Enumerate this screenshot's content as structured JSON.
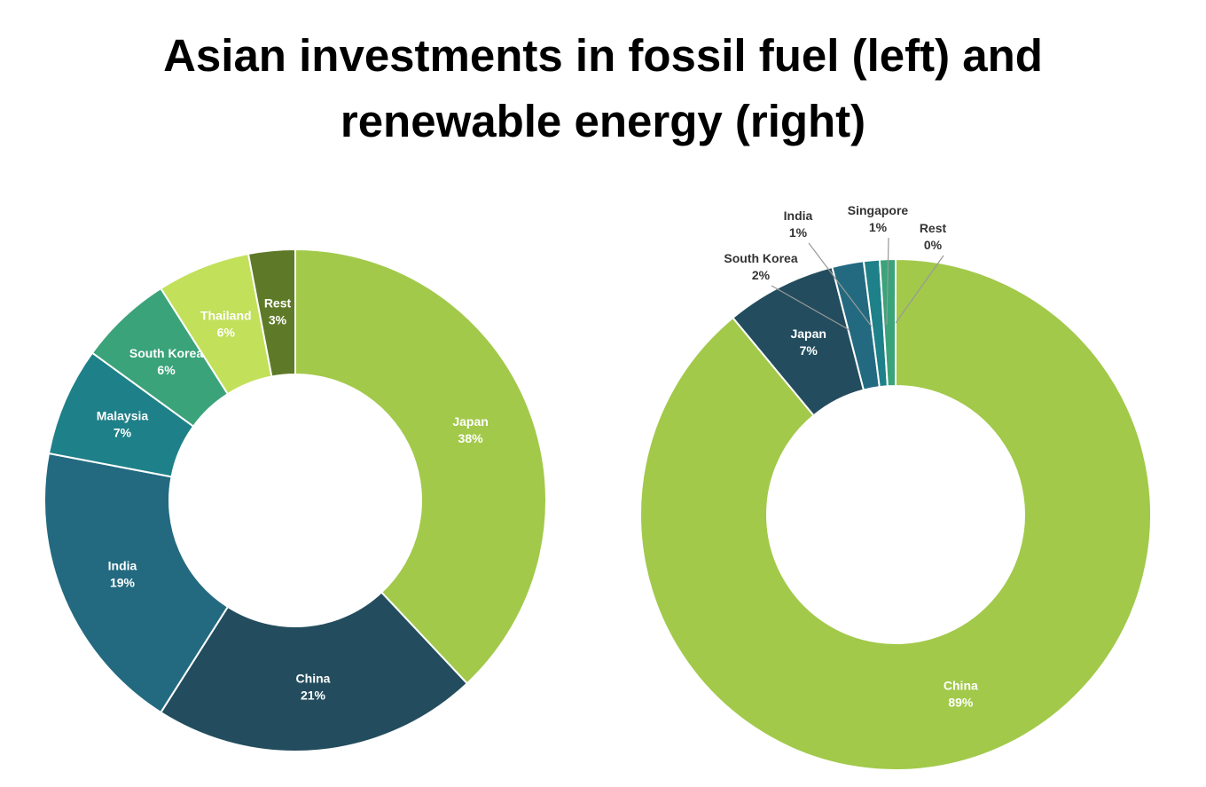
{
  "title": "Asian investments in fossil fuel (left) and renewable energy (right)",
  "chart_data": [
    {
      "type": "pie",
      "categories": [
        "Japan",
        "China",
        "India",
        "Malaysia",
        "South Korea",
        "Thailand",
        "Rest"
      ],
      "values": [
        38,
        21,
        19,
        7,
        6,
        6,
        3
      ],
      "value_labels": [
        "38%",
        "21%",
        "19%",
        "7%",
        "6%",
        "6%",
        "3%"
      ],
      "colors": [
        "#a2c94a",
        "#234d5e",
        "#236a80",
        "#1e8088",
        "#3ba37a",
        "#c2e05a",
        "#5e7a28"
      ]
    },
    {
      "type": "pie",
      "categories": [
        "China",
        "Japan",
        "South Korea",
        "India",
        "Singapore",
        "Rest"
      ],
      "values": [
        89,
        7,
        2,
        1,
        1,
        0
      ],
      "value_labels": [
        "89%",
        "7%",
        "2%",
        "1%",
        "1%",
        "0%"
      ],
      "colors": [
        "#a2c94a",
        "#234d5e",
        "#236a80",
        "#1e8088",
        "#3ba37a",
        "#c2e05a"
      ]
    }
  ]
}
